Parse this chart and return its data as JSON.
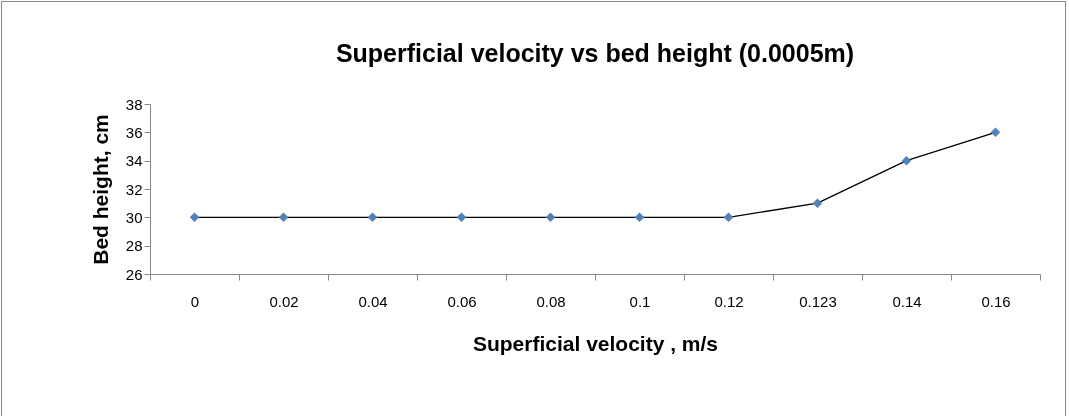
{
  "chart_data": {
    "type": "line",
    "title": "Superficial velocity vs bed height (0.0005m)",
    "xlabel": "Superficial velocity , m/s",
    "ylabel": "Bed height, cm",
    "categories": [
      "0",
      "0.02",
      "0.04",
      "0.06",
      "0.08",
      "0.1",
      "0.12",
      "0.123",
      "0.14",
      "0.16"
    ],
    "series": [
      {
        "color": "#4f81bd",
        "values": [
          30,
          30,
          30,
          30,
          30,
          30,
          30,
          31,
          34,
          36
        ]
      }
    ],
    "ylim": [
      26,
      38
    ],
    "yticks": [
      26,
      28,
      30,
      32,
      34,
      36,
      38
    ],
    "grid": false,
    "marker": "diamond",
    "line_style": "solid"
  }
}
